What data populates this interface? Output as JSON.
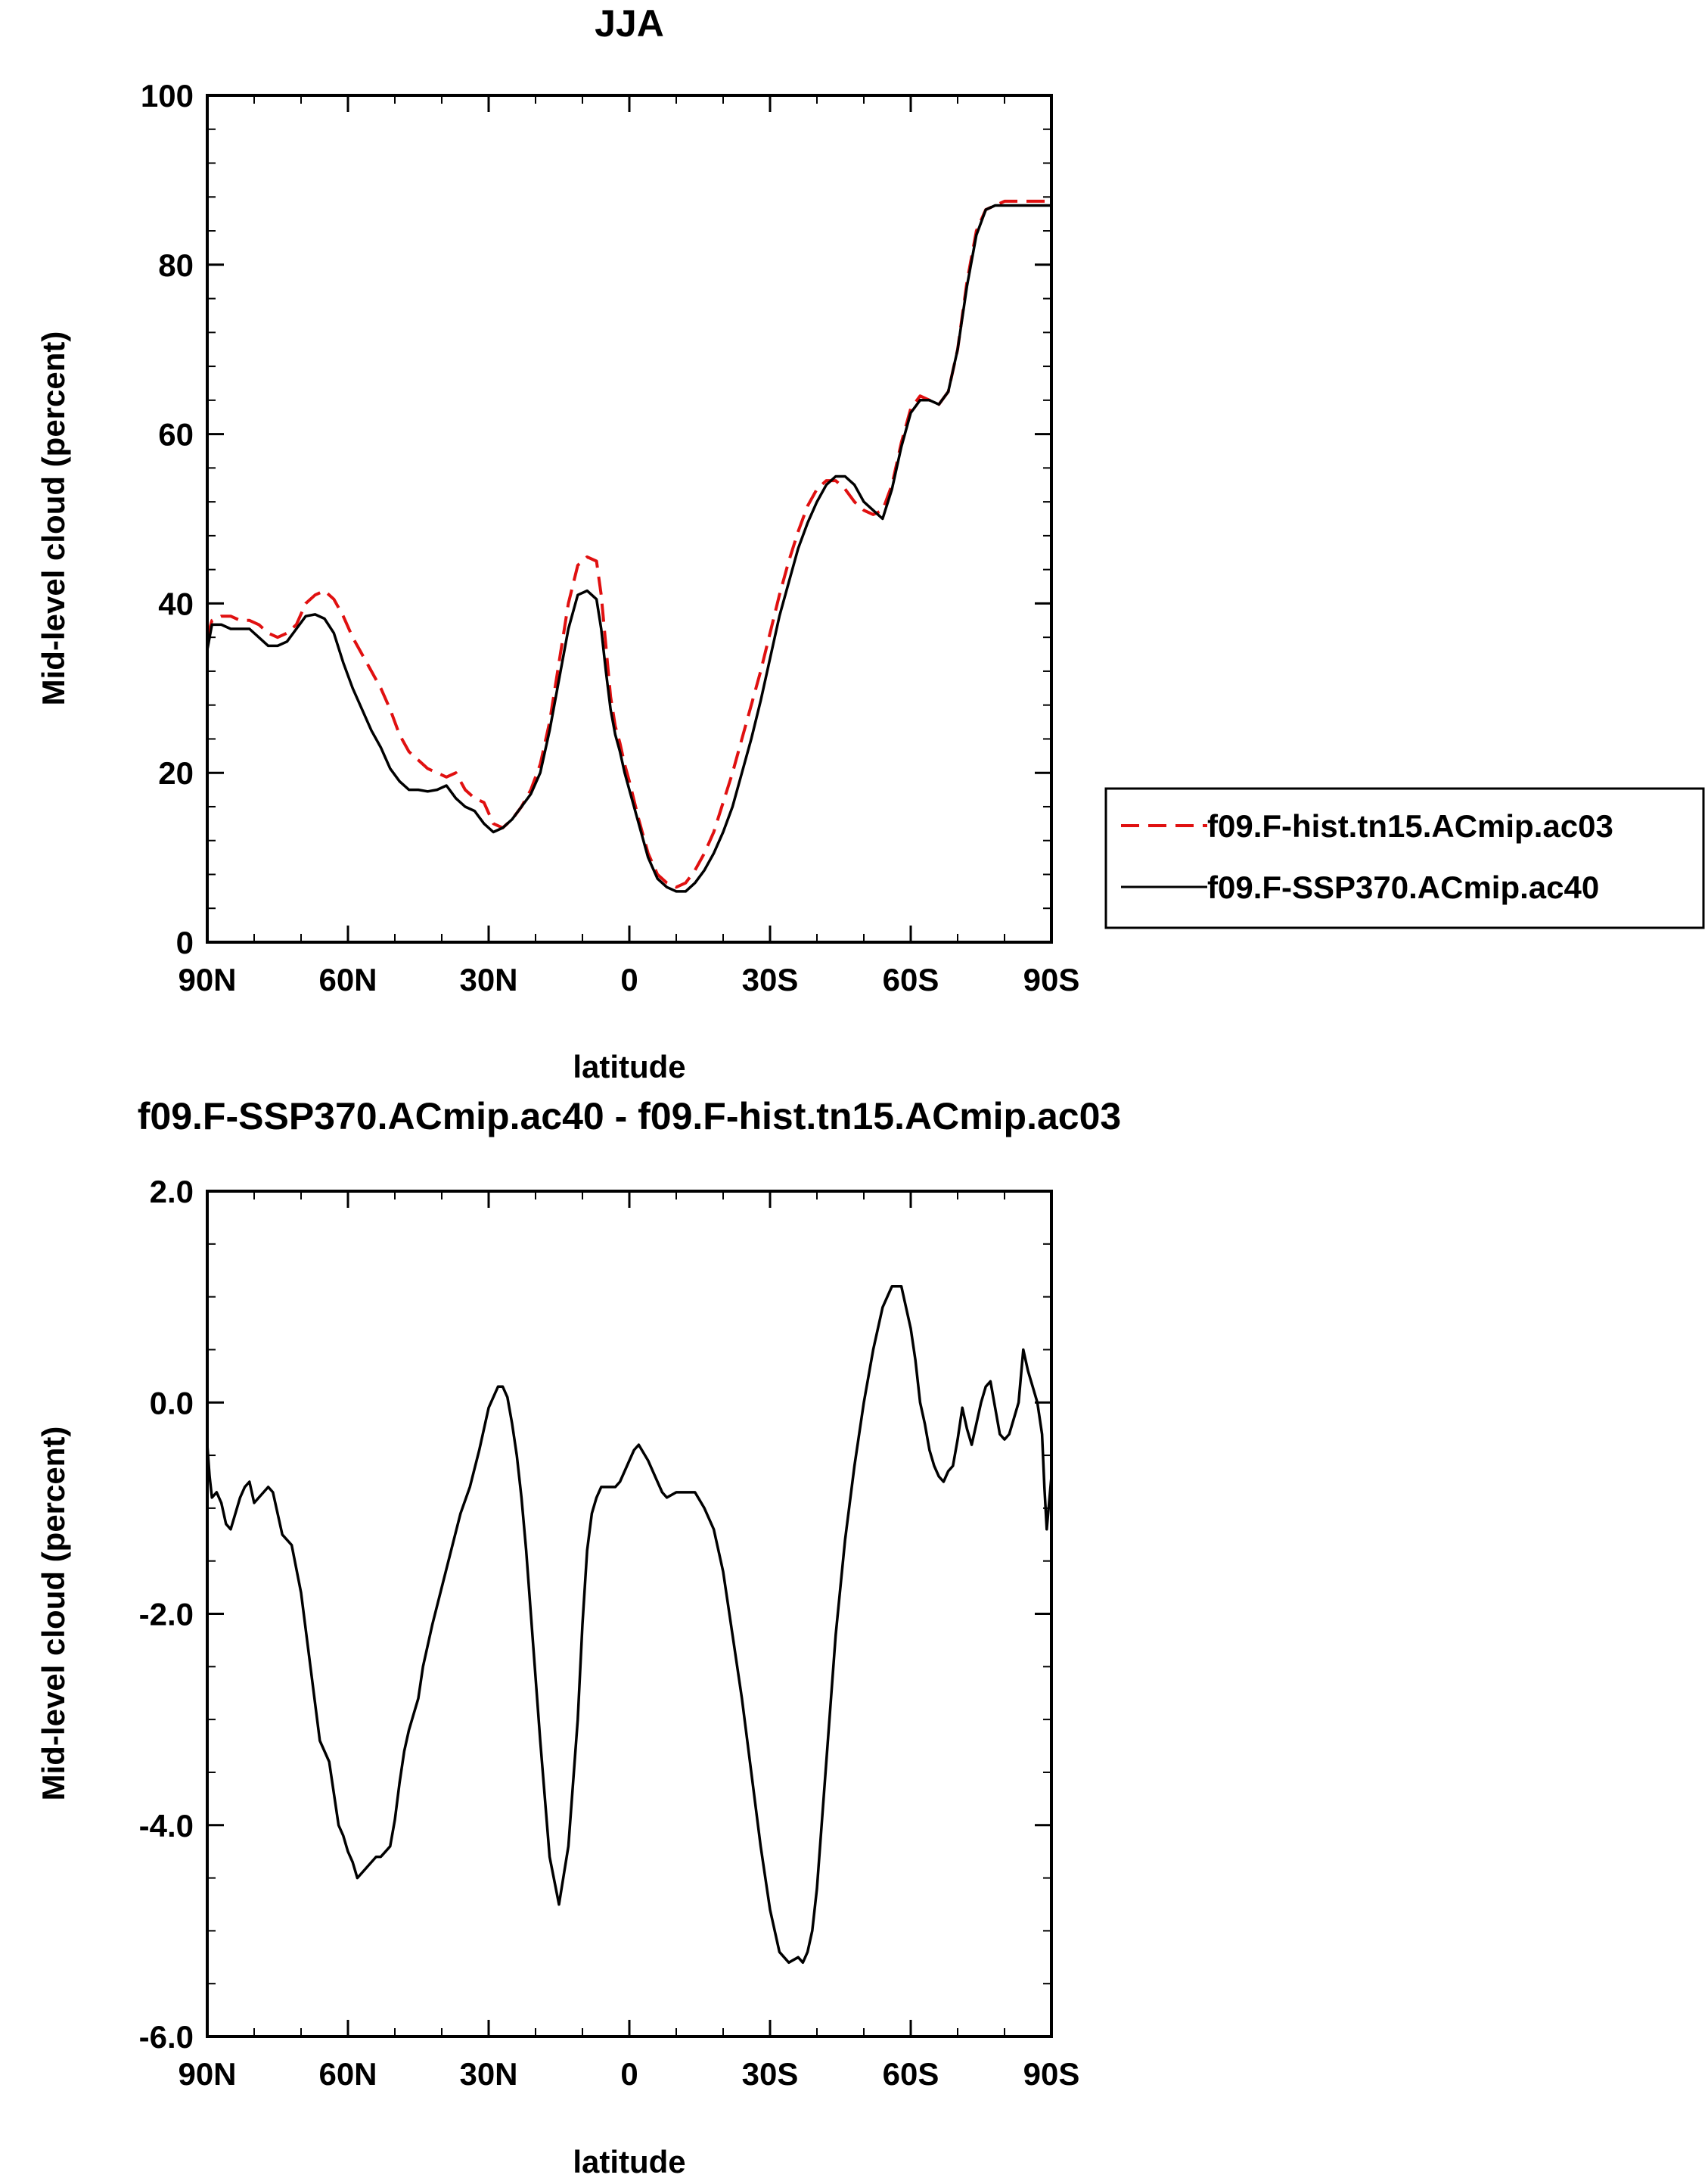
{
  "chart_data": [
    {
      "type": "line",
      "title": "JJA",
      "xlabel": "latitude",
      "ylabel": "Mid-level cloud (percent)",
      "xlim": [
        90,
        -90
      ],
      "ylim": [
        0,
        100
      ],
      "x_ticks": [
        90,
        60,
        30,
        0,
        -30,
        -60,
        -90
      ],
      "x_tick_labels": [
        "90N",
        "60N",
        "30N",
        "0",
        "30S",
        "60S",
        "90S"
      ],
      "y_ticks": [
        0,
        20,
        40,
        60,
        80,
        100
      ],
      "y_tick_labels": [
        "0",
        "20",
        "40",
        "60",
        "80",
        "100"
      ],
      "legend_position": "outside-right",
      "series": [
        {
          "name": "f09.F-hist.tn15.ACmip.ac03",
          "color": "#e01010",
          "style": "dashed",
          "x": [
            90,
            89,
            87,
            85,
            83,
            81,
            79,
            77,
            75,
            73,
            71,
            69,
            67,
            65,
            63,
            61,
            59,
            57,
            55,
            53,
            51,
            49,
            47,
            45,
            43,
            41,
            39,
            37,
            35,
            33,
            31,
            29,
            27,
            25,
            23,
            21,
            19,
            17,
            15,
            13,
            11,
            9,
            7,
            6,
            5,
            4,
            3,
            2,
            1,
            0,
            -2,
            -4,
            -6,
            -8,
            -10,
            -12,
            -14,
            -16,
            -18,
            -20,
            -22,
            -24,
            -26,
            -28,
            -30,
            -32,
            -34,
            -36,
            -38,
            -40,
            -42,
            -44,
            -46,
            -48,
            -50,
            -52,
            -54,
            -56,
            -58,
            -60,
            -62,
            -64,
            -66,
            -68,
            -70,
            -72,
            -74,
            -76,
            -78,
            -80,
            -82,
            -84,
            -86,
            -88,
            -90
          ],
          "values": [
            36.0,
            38.0,
            38.5,
            38.5,
            38.0,
            38.0,
            37.5,
            36.5,
            36.0,
            36.5,
            37.5,
            40.0,
            41.0,
            41.5,
            40.5,
            38.5,
            36.0,
            34.0,
            32.0,
            30.0,
            27.5,
            24.5,
            22.5,
            21.5,
            20.5,
            20.0,
            19.5,
            20.0,
            18.0,
            17.0,
            16.5,
            14.0,
            13.5,
            14.5,
            16.0,
            18.0,
            21.0,
            26.0,
            33.0,
            40.0,
            44.5,
            45.5,
            45.0,
            41.0,
            35.0,
            29.0,
            25.5,
            23.5,
            21.0,
            19.0,
            14.5,
            10.5,
            8.0,
            7.0,
            6.5,
            7.0,
            8.5,
            10.5,
            13.0,
            16.5,
            20.0,
            24.0,
            28.0,
            32.0,
            36.5,
            41.0,
            45.0,
            48.5,
            51.5,
            53.5,
            54.5,
            54.5,
            53.5,
            52.0,
            51.0,
            50.5,
            51.0,
            54.0,
            59.0,
            63.0,
            64.5,
            64.0,
            63.5,
            65.0,
            70.0,
            78.0,
            84.0,
            86.5,
            87.0,
            87.5,
            87.5,
            87.5,
            87.5,
            87.5,
            87.5
          ]
        },
        {
          "name": "f09.F-SSP370.ACmip.ac40",
          "color": "#000000",
          "style": "solid",
          "x": [
            90,
            89,
            87,
            85,
            83,
            81,
            79,
            77,
            75,
            73,
            71,
            69,
            67,
            65,
            63,
            61,
            59,
            57,
            55,
            53,
            51,
            49,
            47,
            45,
            43,
            41,
            39,
            37,
            35,
            33,
            31,
            29,
            27,
            25,
            23,
            21,
            19,
            17,
            15,
            13,
            11,
            9,
            7,
            6,
            5,
            4,
            3,
            2,
            1,
            0,
            -2,
            -4,
            -6,
            -8,
            -10,
            -12,
            -14,
            -16,
            -18,
            -20,
            -22,
            -24,
            -26,
            -28,
            -30,
            -32,
            -34,
            -36,
            -38,
            -40,
            -42,
            -44,
            -46,
            -48,
            -50,
            -52,
            -54,
            -56,
            -58,
            -60,
            -62,
            -64,
            -66,
            -68,
            -70,
            -72,
            -74,
            -76,
            -78,
            -80,
            -82,
            -84,
            -86,
            -88,
            -90
          ],
          "values": [
            34.5,
            37.5,
            37.5,
            37.0,
            37.0,
            37.0,
            36.0,
            35.0,
            35.0,
            35.5,
            37.0,
            38.5,
            38.7,
            38.2,
            36.5,
            33.0,
            30.0,
            27.5,
            25.0,
            23.0,
            20.5,
            19.0,
            18.0,
            18.0,
            17.8,
            18.0,
            18.5,
            17.0,
            16.0,
            15.5,
            14.0,
            13.0,
            13.5,
            14.5,
            16.0,
            17.5,
            20.0,
            25.0,
            31.0,
            37.0,
            41.0,
            41.5,
            40.5,
            37.0,
            32.0,
            27.5,
            24.5,
            22.5,
            20.0,
            18.0,
            14.0,
            10.0,
            7.5,
            6.5,
            6.0,
            6.0,
            7.0,
            8.5,
            10.5,
            13.0,
            16.0,
            20.0,
            24.0,
            28.5,
            33.5,
            38.5,
            42.5,
            46.5,
            49.5,
            52.0,
            54.0,
            55.0,
            55.0,
            54.0,
            52.0,
            51.0,
            50.0,
            53.5,
            58.5,
            62.5,
            64.0,
            64.0,
            63.5,
            65.0,
            70.0,
            77.5,
            83.5,
            86.5,
            87.0,
            87.0,
            87.0,
            87.0,
            87.0,
            87.0,
            87.0
          ]
        }
      ]
    },
    {
      "type": "line",
      "title": "f09.F-SSP370.ACmip.ac40 - f09.F-hist.tn15.ACmip.ac03",
      "xlabel": "latitude",
      "ylabel": "Mid-level cloud (percent)",
      "xlim": [
        90,
        -90
      ],
      "ylim": [
        -6.0,
        2.0
      ],
      "x_ticks": [
        90,
        60,
        30,
        0,
        -30,
        -60,
        -90
      ],
      "x_tick_labels": [
        "90N",
        "60N",
        "30N",
        "0",
        "30S",
        "60S",
        "90S"
      ],
      "y_ticks": [
        -6.0,
        -4.0,
        -2.0,
        0.0,
        2.0
      ],
      "y_tick_labels": [
        "-6.0",
        "-4.0",
        "-2.0",
        "0.0",
        "2.0"
      ],
      "series": [
        {
          "name": "f09.F-SSP370.ACmip.ac40 - f09.F-hist.tn15.ACmip.ac03",
          "color": "#000000",
          "style": "solid",
          "x": [
            90,
            89.5,
            89,
            88,
            87,
            86,
            85,
            84,
            83,
            82,
            81,
            80,
            79,
            78,
            77,
            76,
            75,
            74,
            72,
            70,
            68,
            66,
            65,
            64,
            63,
            62,
            61,
            60,
            59,
            58,
            57,
            56,
            55,
            54,
            53,
            52,
            51,
            50,
            49,
            48,
            47,
            46,
            45,
            44,
            42,
            40,
            38,
            36,
            34,
            32,
            30,
            28,
            27,
            26,
            25,
            24,
            23,
            22,
            21,
            19,
            17,
            15,
            13,
            11,
            10,
            9,
            8,
            7,
            6,
            5,
            4,
            3,
            2,
            1,
            0,
            -1,
            -2,
            -4,
            -6,
            -7,
            -8,
            -10,
            -12,
            -14,
            -16,
            -18,
            -20,
            -22,
            -24,
            -26,
            -28,
            -30,
            -32,
            -34,
            -36,
            -37,
            -38,
            -39,
            -40,
            -41,
            -42,
            -43,
            -44,
            -46,
            -48,
            -50,
            -52,
            -54,
            -56,
            -58,
            -60,
            -61,
            -62,
            -63,
            -64,
            -65,
            -66,
            -67,
            -68,
            -69,
            -70,
            -71,
            -72,
            -73,
            -74,
            -75,
            -76,
            -77,
            -78,
            -79,
            -80,
            -81,
            -82,
            -83,
            -84,
            -85,
            -86,
            -87,
            -88,
            -88.5,
            -89,
            -89.5,
            -90
          ],
          "values": [
            -0.4,
            -0.7,
            -0.9,
            -0.85,
            -0.95,
            -1.15,
            -1.2,
            -1.05,
            -0.9,
            -0.8,
            -0.75,
            -0.95,
            -0.9,
            -0.85,
            -0.8,
            -0.85,
            -1.05,
            -1.25,
            -1.35,
            -1.8,
            -2.5,
            -3.2,
            -3.3,
            -3.4,
            -3.7,
            -4.0,
            -4.1,
            -4.25,
            -4.35,
            -4.5,
            -4.45,
            -4.4,
            -4.35,
            -4.3,
            -4.3,
            -4.25,
            -4.2,
            -3.95,
            -3.6,
            -3.3,
            -3.1,
            -2.95,
            -2.8,
            -2.5,
            -2.1,
            -1.75,
            -1.4,
            -1.05,
            -0.8,
            -0.45,
            -0.05,
            0.15,
            0.15,
            0.05,
            -0.2,
            -0.5,
            -0.9,
            -1.4,
            -2.0,
            -3.2,
            -4.3,
            -4.75,
            -4.2,
            -3.0,
            -2.1,
            -1.4,
            -1.05,
            -0.9,
            -0.8,
            -0.8,
            -0.8,
            -0.8,
            -0.75,
            -0.65,
            -0.55,
            -0.45,
            -0.4,
            -0.55,
            -0.75,
            -0.85,
            -0.9,
            -0.85,
            -0.85,
            -0.85,
            -1.0,
            -1.2,
            -1.6,
            -2.2,
            -2.8,
            -3.5,
            -4.2,
            -4.8,
            -5.2,
            -5.3,
            -5.25,
            -5.3,
            -5.2,
            -5.0,
            -4.6,
            -4.0,
            -3.4,
            -2.8,
            -2.2,
            -1.3,
            -0.6,
            0.0,
            0.5,
            0.9,
            1.1,
            1.1,
            0.7,
            0.4,
            0.0,
            -0.2,
            -0.45,
            -0.6,
            -0.7,
            -0.75,
            -0.65,
            -0.6,
            -0.35,
            -0.05,
            -0.25,
            -0.4,
            -0.2,
            0.0,
            0.15,
            0.2,
            -0.05,
            -0.3,
            -0.35,
            -0.3,
            -0.15,
            0.0,
            0.5,
            0.3,
            0.15,
            0.0,
            -0.3,
            -0.8,
            -1.2,
            -0.95,
            -0.7
          ]
        }
      ]
    }
  ]
}
